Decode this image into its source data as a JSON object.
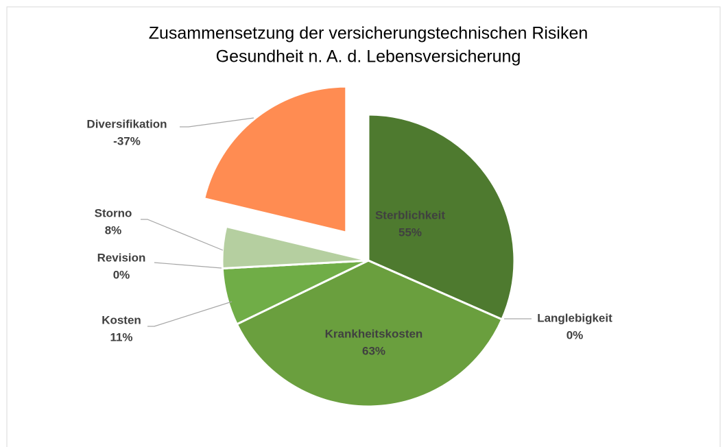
{
  "chart_data": {
    "type": "pie",
    "title": [
      "Zusammensetzung der versicherungstechnischen Risiken",
      "Gesundheit n. A. d. Lebensversicherung"
    ],
    "categories": [
      "Sterblichkeit",
      "Langlebigkeit",
      "Krankheitskosten",
      "Kosten",
      "Revision",
      "Storno",
      "Diversifikation"
    ],
    "values": [
      55,
      0,
      63,
      11,
      0,
      8,
      -37
    ],
    "value_labels": [
      "55%",
      "0%",
      "63%",
      "11%",
      "0%",
      "8%",
      "-37%"
    ],
    "colors": [
      "#4e7a2f",
      "#5f9136",
      "#6a9f3e",
      "#70ad47",
      "#8cbf66",
      "#b5cfa0",
      "#ff8c52"
    ],
    "exploded": [
      "Diversifikation"
    ]
  }
}
